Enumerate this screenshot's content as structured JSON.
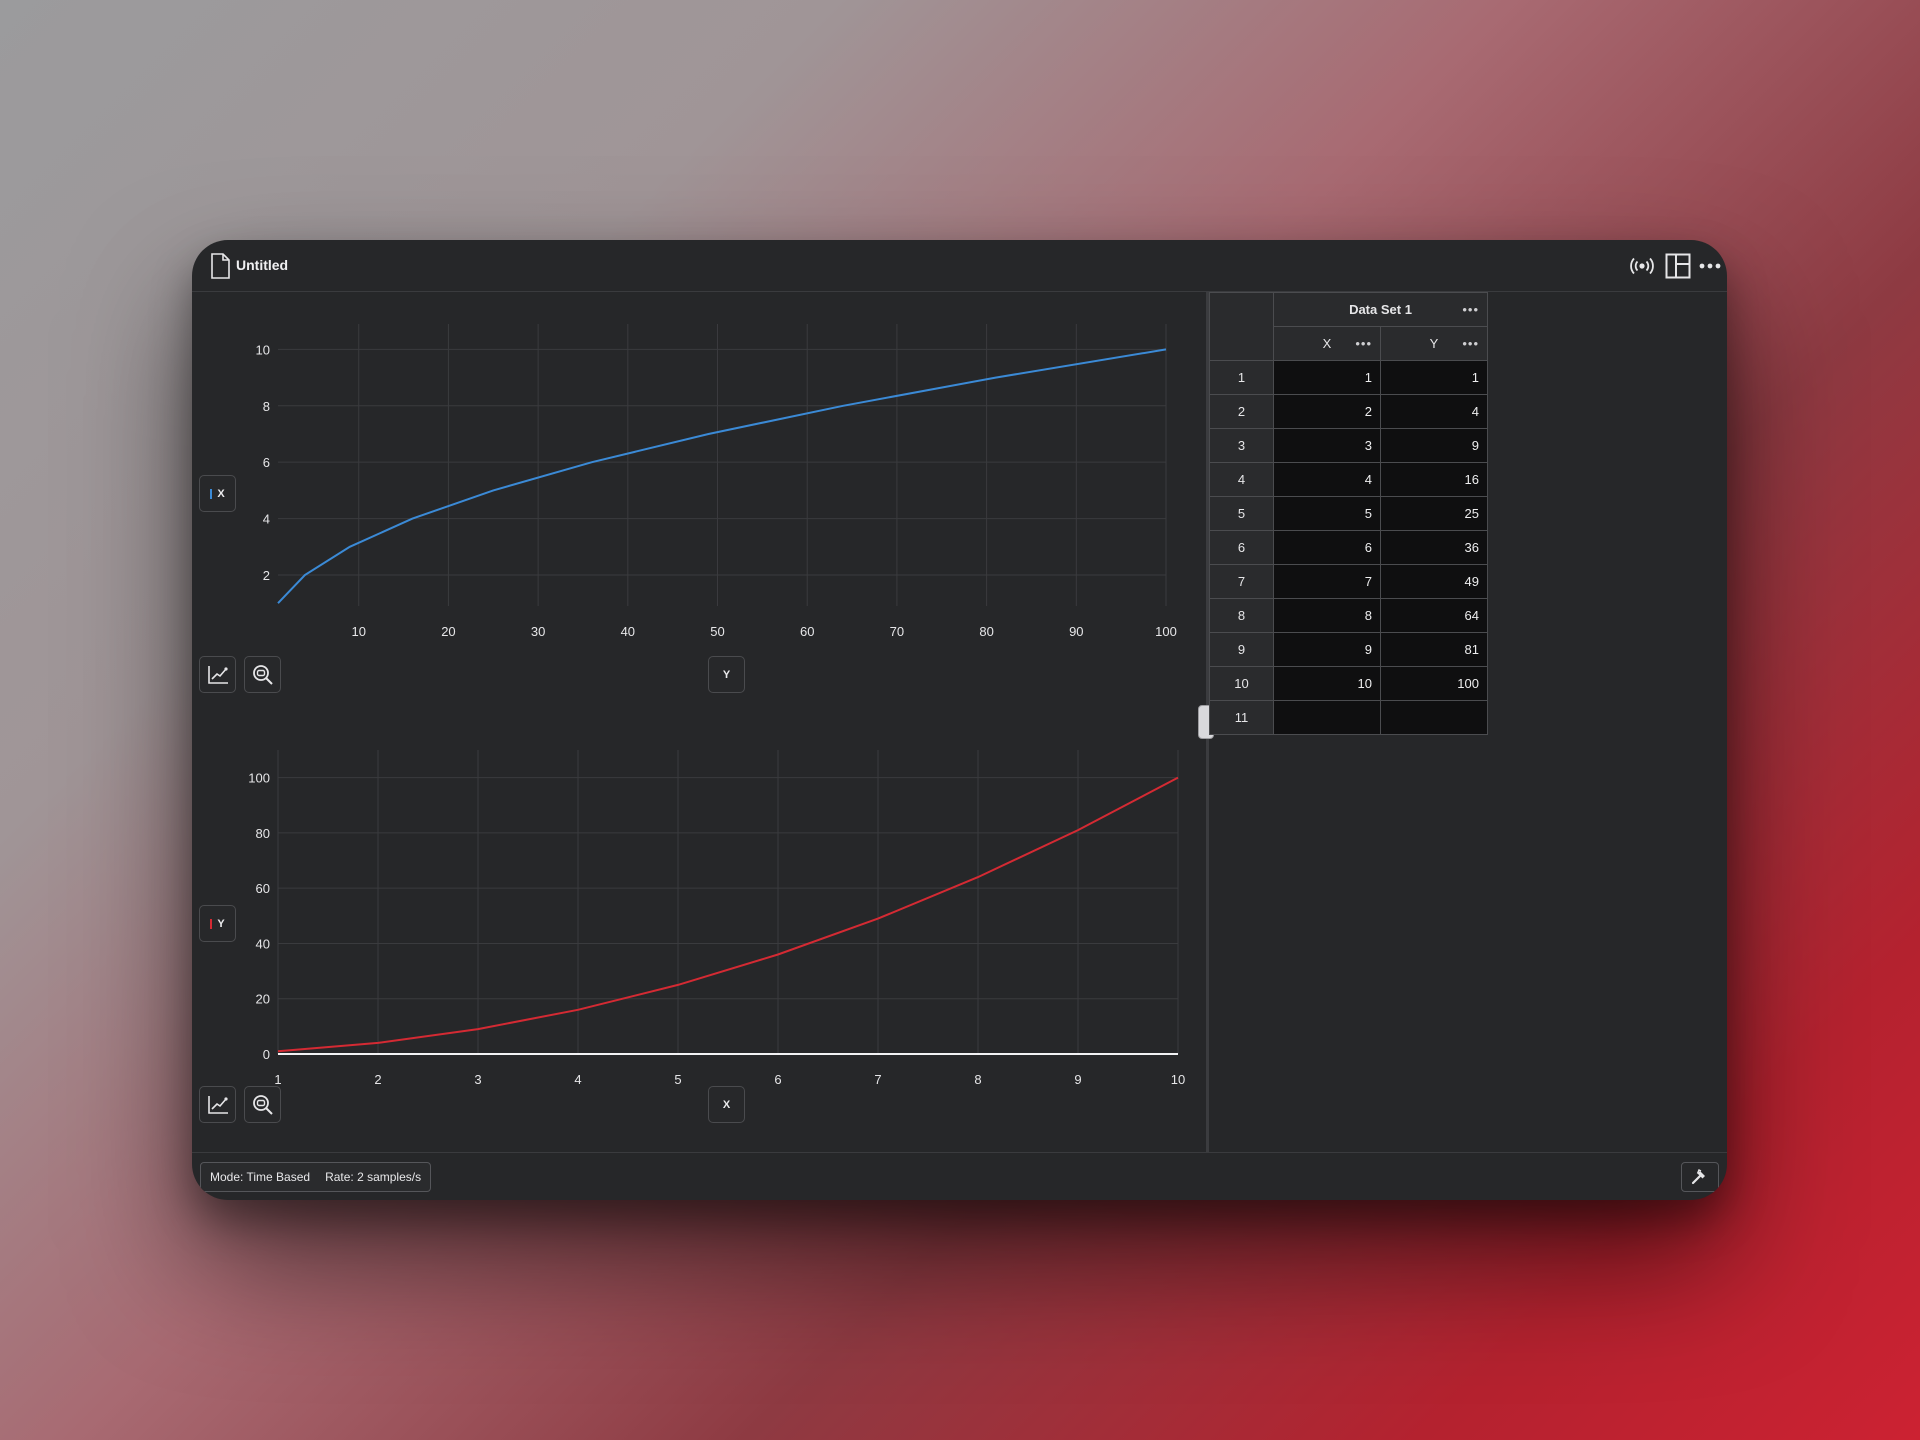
{
  "window": {
    "title": "Untitled"
  },
  "toolbar": {
    "icons": [
      "broadcast-icon",
      "layout-icon",
      "more-icon"
    ]
  },
  "graph_top": {
    "y_axis_button": "X",
    "x_axis_button": "Y",
    "line_color": "#3b8ad6",
    "swatch_color": "#3b8ad6"
  },
  "graph_bottom": {
    "y_axis_button": "Y",
    "x_axis_button": "X",
    "line_color": "#d42a33",
    "swatch_color": "#d42a33"
  },
  "chart_data": [
    {
      "type": "line",
      "title": "",
      "xlabel": "",
      "ylabel": "",
      "x": [
        1,
        4,
        9,
        16,
        25,
        36,
        49,
        64,
        81,
        100
      ],
      "series": [
        {
          "values": [
            1,
            2,
            3,
            4,
            5,
            6,
            7,
            8,
            9,
            10
          ]
        }
      ],
      "xlim": [
        1,
        100
      ],
      "ylim": [
        0.9,
        10.9
      ],
      "xticks": [
        10,
        20,
        30,
        40,
        50,
        60,
        70,
        80,
        90,
        100
      ],
      "yticks": [
        2,
        4,
        6,
        8,
        10
      ],
      "grid": true
    },
    {
      "type": "line",
      "title": "",
      "xlabel": "",
      "ylabel": "",
      "x": [
        1,
        2,
        3,
        4,
        5,
        6,
        7,
        8,
        9,
        10
      ],
      "series": [
        {
          "values": [
            1,
            4,
            9,
            16,
            25,
            36,
            49,
            64,
            81,
            100
          ]
        }
      ],
      "xlim": [
        1,
        10
      ],
      "ylim": [
        0,
        110
      ],
      "xticks": [
        1,
        2,
        3,
        4,
        5,
        6,
        7,
        8,
        9,
        10
      ],
      "yticks": [
        0,
        20,
        40,
        60,
        80,
        100
      ],
      "grid": true
    }
  ],
  "table": {
    "dataset_name": "Data Set 1",
    "columns": [
      "X",
      "Y"
    ],
    "rows": [
      {
        "n": "1",
        "x": "1",
        "y": "1"
      },
      {
        "n": "2",
        "x": "2",
        "y": "4"
      },
      {
        "n": "3",
        "x": "3",
        "y": "9"
      },
      {
        "n": "4",
        "x": "4",
        "y": "16"
      },
      {
        "n": "5",
        "x": "5",
        "y": "25"
      },
      {
        "n": "6",
        "x": "6",
        "y": "36"
      },
      {
        "n": "7",
        "x": "7",
        "y": "49"
      },
      {
        "n": "8",
        "x": "8",
        "y": "64"
      },
      {
        "n": "9",
        "x": "9",
        "y": "81"
      },
      {
        "n": "10",
        "x": "10",
        "y": "100"
      },
      {
        "n": "11",
        "x": "",
        "y": ""
      }
    ]
  },
  "status": {
    "mode": "Mode: Time Based",
    "rate": "Rate: 2 samples/s"
  }
}
